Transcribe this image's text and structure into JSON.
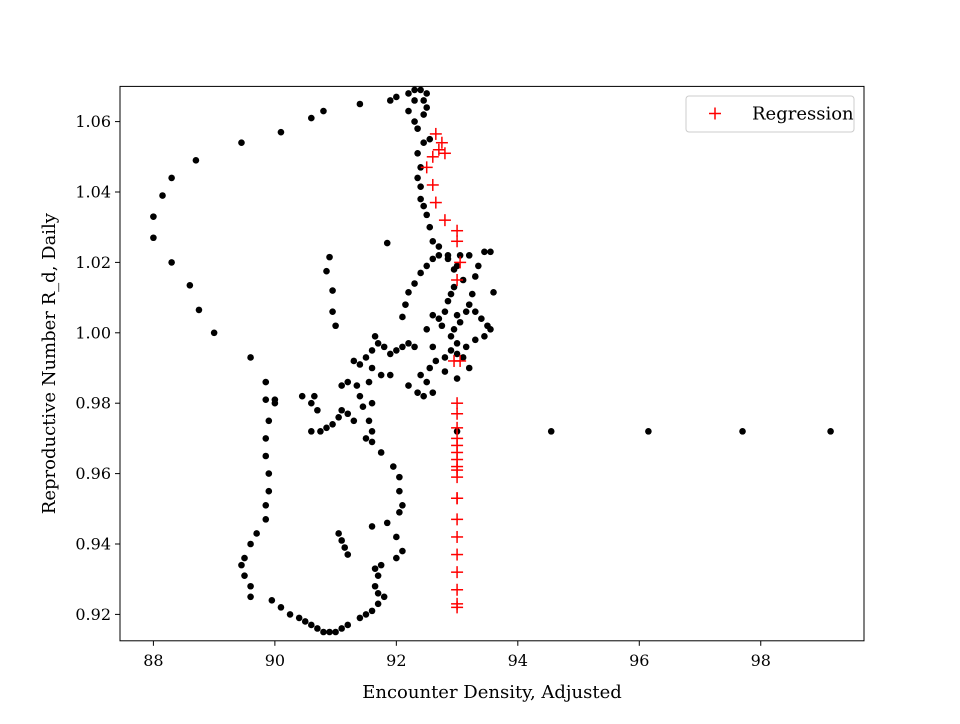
{
  "chart_data": {
    "type": "scatter",
    "xlabel": "Encounter Density, Adjusted",
    "ylabel": "Reproductive Number R_d, Daily",
    "xlim": [
      87.45,
      99.7
    ],
    "ylim": [
      0.9125,
      1.07
    ],
    "xticks": [
      88,
      90,
      92,
      94,
      96,
      98
    ],
    "yticks": [
      0.92,
      0.94,
      0.96,
      0.98,
      1.0,
      1.02,
      1.04,
      1.06
    ],
    "xtick_labels": [
      "88",
      "90",
      "92",
      "94",
      "96",
      "98"
    ],
    "ytick_labels": [
      "0.92",
      "0.94",
      "0.96",
      "0.98",
      "1.00",
      "1.02",
      "1.04",
      "1.06"
    ],
    "grid": false,
    "legend": {
      "location": "upper right",
      "entries": [
        {
          "label": "Regression",
          "marker": "+",
          "color": "#ff0000"
        }
      ]
    },
    "series": [
      {
        "marker": "dot",
        "color": "#000000",
        "points": [
          [
            91.4,
            1.065
          ],
          [
            90.8,
            1.063
          ],
          [
            90.6,
            1.061
          ],
          [
            90.1,
            1.057
          ],
          [
            89.45,
            1.054
          ],
          [
            88.7,
            1.049
          ],
          [
            88.3,
            1.044
          ],
          [
            88.15,
            1.039
          ],
          [
            88.0,
            1.033
          ],
          [
            88.0,
            1.027
          ],
          [
            88.3,
            1.02
          ],
          [
            88.6,
            1.0135
          ],
          [
            88.75,
            1.0065
          ],
          [
            89.0,
            1.0
          ],
          [
            89.6,
            0.993
          ],
          [
            89.85,
            0.986
          ],
          [
            89.85,
            0.981
          ],
          [
            90.0,
            0.98
          ],
          [
            90.0,
            0.981
          ],
          [
            89.9,
            0.975
          ],
          [
            89.85,
            0.97
          ],
          [
            89.85,
            0.965
          ],
          [
            89.9,
            0.96
          ],
          [
            89.9,
            0.955
          ],
          [
            89.85,
            0.951
          ],
          [
            89.85,
            0.947
          ],
          [
            89.7,
            0.943
          ],
          [
            89.6,
            0.94
          ],
          [
            89.5,
            0.936
          ],
          [
            89.45,
            0.934
          ],
          [
            89.5,
            0.931
          ],
          [
            89.6,
            0.928
          ],
          [
            89.6,
            0.925
          ],
          [
            89.95,
            0.924
          ],
          [
            90.1,
            0.922
          ],
          [
            90.25,
            0.92
          ],
          [
            90.4,
            0.919
          ],
          [
            90.5,
            0.918
          ],
          [
            90.6,
            0.917
          ],
          [
            90.7,
            0.916
          ],
          [
            90.8,
            0.915
          ],
          [
            90.9,
            0.915
          ],
          [
            91.0,
            0.915
          ],
          [
            91.1,
            0.916
          ],
          [
            91.2,
            0.917
          ],
          [
            91.4,
            0.919
          ],
          [
            91.5,
            0.92
          ],
          [
            91.6,
            0.921
          ],
          [
            91.7,
            0.923
          ],
          [
            91.8,
            0.925
          ],
          [
            91.7,
            0.926
          ],
          [
            91.65,
            0.928
          ],
          [
            91.7,
            0.931
          ],
          [
            91.65,
            0.933
          ],
          [
            91.75,
            0.934
          ],
          [
            92.0,
            0.936
          ],
          [
            92.1,
            0.938
          ],
          [
            92.0,
            0.942
          ],
          [
            91.85,
            0.946
          ],
          [
            91.6,
            0.945
          ],
          [
            92.05,
            0.949
          ],
          [
            92.1,
            0.951
          ],
          [
            92.05,
            0.955
          ],
          [
            92.05,
            0.959
          ],
          [
            91.95,
            0.962
          ],
          [
            91.75,
            0.966
          ],
          [
            91.6,
            0.969
          ],
          [
            91.6,
            0.972
          ],
          [
            91.55,
            0.975
          ],
          [
            91.45,
            0.979
          ],
          [
            91.4,
            0.982
          ],
          [
            91.35,
            0.985
          ],
          [
            91.2,
            0.986
          ],
          [
            91.1,
            0.985
          ],
          [
            91.05,
            0.943
          ],
          [
            91.1,
            0.941
          ],
          [
            91.15,
            0.939
          ],
          [
            91.2,
            0.937
          ],
          [
            90.45,
            0.982
          ],
          [
            90.6,
            0.98
          ],
          [
            90.65,
            0.982
          ],
          [
            90.7,
            0.978
          ],
          [
            90.6,
            0.972
          ],
          [
            90.75,
            0.972
          ],
          [
            90.85,
            0.973
          ],
          [
            90.95,
            0.974
          ],
          [
            91.05,
            0.976
          ],
          [
            91.1,
            0.978
          ],
          [
            91.2,
            0.977
          ],
          [
            91.3,
            0.975
          ],
          [
            91.5,
            0.97
          ],
          [
            91.6,
            0.98
          ],
          [
            90.85,
            1.0175
          ],
          [
            90.9,
            1.0215
          ],
          [
            90.95,
            1.012
          ],
          [
            90.95,
            1.006
          ],
          [
            91.0,
            1.002
          ],
          [
            91.85,
            1.0255
          ],
          [
            91.3,
            0.992
          ],
          [
            91.4,
            0.991
          ],
          [
            91.5,
            0.993
          ],
          [
            91.6,
            0.995
          ],
          [
            91.7,
            0.997
          ],
          [
            91.8,
            0.996
          ],
          [
            91.9,
            0.994
          ],
          [
            92.0,
            0.995
          ],
          [
            92.1,
            0.996
          ],
          [
            92.2,
            0.997
          ],
          [
            92.3,
            0.996
          ],
          [
            91.65,
            0.999
          ],
          [
            91.55,
            0.986
          ],
          [
            91.6,
            0.99
          ],
          [
            91.75,
            0.988
          ],
          [
            91.9,
            0.988
          ],
          [
            92.2,
            0.985
          ],
          [
            92.35,
            0.983
          ],
          [
            92.4,
            0.988
          ],
          [
            92.5,
            0.986
          ],
          [
            92.45,
            0.982
          ],
          [
            92.6,
            0.983
          ],
          [
            92.55,
            0.99
          ],
          [
            92.65,
            0.992
          ],
          [
            92.8,
            0.993
          ],
          [
            92.9,
            0.995
          ],
          [
            93.0,
            0.994
          ],
          [
            92.6,
            0.996
          ],
          [
            92.5,
            1.001
          ],
          [
            92.6,
            1.005
          ],
          [
            92.1,
            1.0045
          ],
          [
            92.15,
            1.008
          ],
          [
            92.2,
            1.0115
          ],
          [
            92.3,
            1.014
          ],
          [
            92.4,
            1.017
          ],
          [
            92.5,
            1.019
          ],
          [
            92.6,
            1.021
          ],
          [
            92.7,
            1.022
          ],
          [
            92.85,
            1.021
          ],
          [
            93.0,
            1.019
          ],
          [
            93.1,
            1.015
          ],
          [
            92.95,
            1.013
          ],
          [
            92.9,
            1.011
          ],
          [
            92.85,
            1.009
          ],
          [
            92.8,
            1.006
          ],
          [
            92.7,
            1.004
          ],
          [
            92.75,
            1.002
          ],
          [
            93.0,
            1.005
          ],
          [
            93.2,
            1.008
          ],
          [
            93.3,
            1.006
          ],
          [
            93.4,
            1.004
          ],
          [
            93.5,
            1.002
          ],
          [
            93.55,
            1.001
          ],
          [
            93.45,
            0.999
          ],
          [
            93.3,
            0.998
          ],
          [
            93.15,
            0.996
          ],
          [
            93.0,
            0.997
          ],
          [
            92.9,
            0.999
          ],
          [
            92.95,
            1.001
          ],
          [
            93.05,
            1.003
          ],
          [
            93.15,
            1.006
          ],
          [
            93.25,
            1.011
          ],
          [
            93.3,
            1.016
          ],
          [
            93.35,
            1.019
          ],
          [
            93.45,
            1.023
          ],
          [
            93.55,
            1.023
          ],
          [
            93.2,
            1.022
          ],
          [
            93.05,
            1.022
          ],
          [
            92.95,
            1.018
          ],
          [
            93.6,
            1.0115
          ],
          [
            93.1,
            0.993
          ],
          [
            93.2,
            0.99
          ],
          [
            93.0,
            0.987
          ],
          [
            92.8,
            0.989
          ],
          [
            92.85,
            1.022
          ],
          [
            92.7,
            1.0245
          ],
          [
            92.6,
            1.026
          ],
          [
            92.55,
            1.03
          ],
          [
            92.5,
            1.0335
          ],
          [
            92.45,
            1.036
          ],
          [
            92.4,
            1.038
          ],
          [
            92.4,
            1.0415
          ],
          [
            92.35,
            1.044
          ],
          [
            92.4,
            1.047
          ],
          [
            92.35,
            1.051
          ],
          [
            92.45,
            1.054
          ],
          [
            92.55,
            1.055
          ],
          [
            92.35,
            1.058
          ],
          [
            92.45,
            1.062
          ],
          [
            92.5,
            1.064
          ],
          [
            92.5,
            1.068
          ],
          [
            92.4,
            1.069
          ],
          [
            92.3,
            1.069
          ],
          [
            92.2,
            1.068
          ],
          [
            92.3,
            1.066
          ],
          [
            92.45,
            1.066
          ],
          [
            92.0,
            1.067
          ],
          [
            91.9,
            1.066
          ],
          [
            92.2,
            1.063
          ],
          [
            92.3,
            1.06
          ],
          [
            94.55,
            0.972
          ],
          [
            96.15,
            0.972
          ],
          [
            97.7,
            0.972
          ],
          [
            99.15,
            0.972
          ],
          [
            93.0,
            0.972
          ]
        ]
      },
      {
        "name": "Regression",
        "marker": "+",
        "color": "#ff0000",
        "points": [
          [
            92.65,
            1.0565
          ],
          [
            92.75,
            1.054
          ],
          [
            92.7,
            1.052
          ],
          [
            92.8,
            1.051
          ],
          [
            92.6,
            1.05
          ],
          [
            92.5,
            1.047
          ],
          [
            92.6,
            1.042
          ],
          [
            92.65,
            1.037
          ],
          [
            92.8,
            1.032
          ],
          [
            93.0,
            1.029
          ],
          [
            93.0,
            1.026
          ],
          [
            93.05,
            1.02
          ],
          [
            93.0,
            1.015
          ],
          [
            92.95,
            0.992
          ],
          [
            93.05,
            0.992
          ],
          [
            93.0,
            0.98
          ],
          [
            93.0,
            0.977
          ],
          [
            93.0,
            0.973
          ],
          [
            93.0,
            0.97
          ],
          [
            93.0,
            0.968
          ],
          [
            93.0,
            0.966
          ],
          [
            93.0,
            0.964
          ],
          [
            93.0,
            0.962
          ],
          [
            93.0,
            0.961
          ],
          [
            93.0,
            0.959
          ],
          [
            93.0,
            0.953
          ],
          [
            93.0,
            0.953
          ],
          [
            93.0,
            0.947
          ],
          [
            93.0,
            0.942
          ],
          [
            93.0,
            0.937
          ],
          [
            93.0,
            0.932
          ],
          [
            93.0,
            0.927
          ],
          [
            93.0,
            0.923
          ],
          [
            93.0,
            0.922
          ]
        ]
      }
    ]
  }
}
